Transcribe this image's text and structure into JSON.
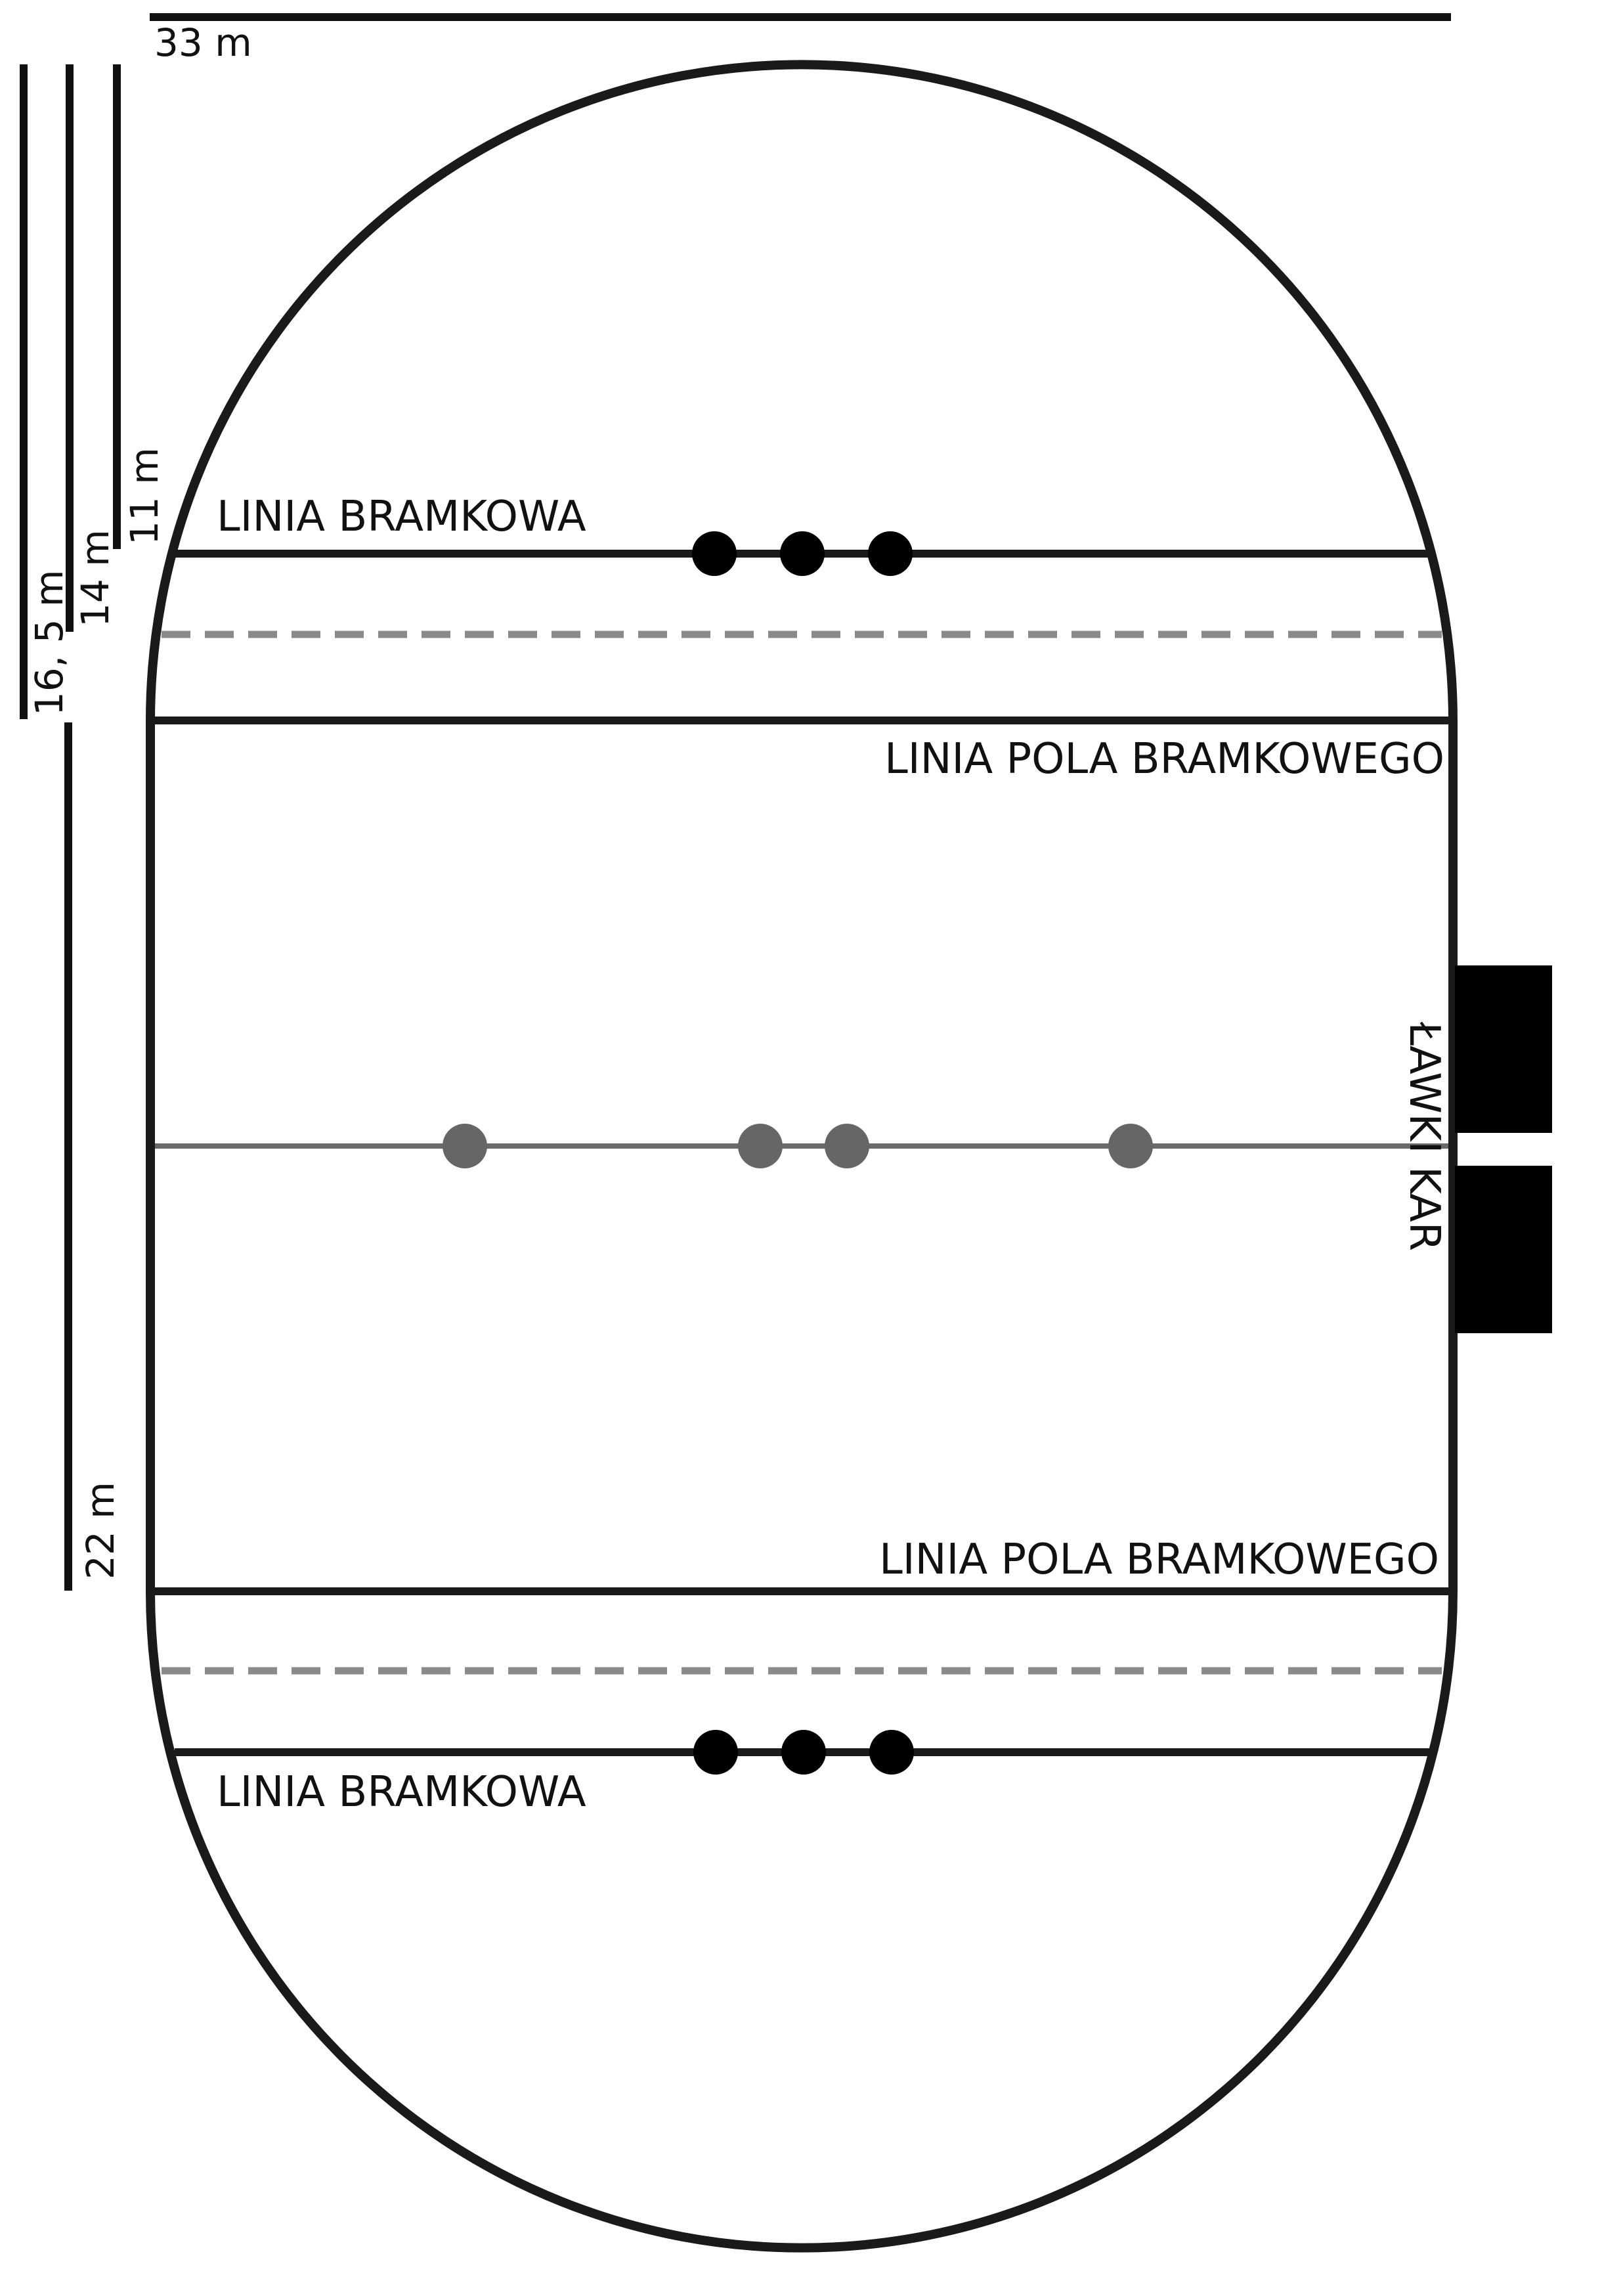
{
  "labels": {
    "goal_line_top": "LINIA BRAMKOWA",
    "goal_line_bottom": "LINIA BRAMKOWA",
    "goal_area_line_top": "LINIA POLA BRAMKOWEGO",
    "goal_area_line_bottom": "LINIA POLA BRAMKOWEGO",
    "penalty_bench_1": "ŁAWKI",
    "penalty_bench_2": "KAR"
  },
  "dimensions": {
    "width": "33 m",
    "goal_line": "11 m",
    "dashed_line": "14 m",
    "goal_area_line": "16, 5 m",
    "center": "22 m"
  },
  "colors": {
    "lines": "#1a1a1a",
    "dashed": "#8a8a8a",
    "center_line": "#6a6a6a",
    "goal_posts": "#000000",
    "center_marks": "#666666",
    "benches": "#000000"
  }
}
